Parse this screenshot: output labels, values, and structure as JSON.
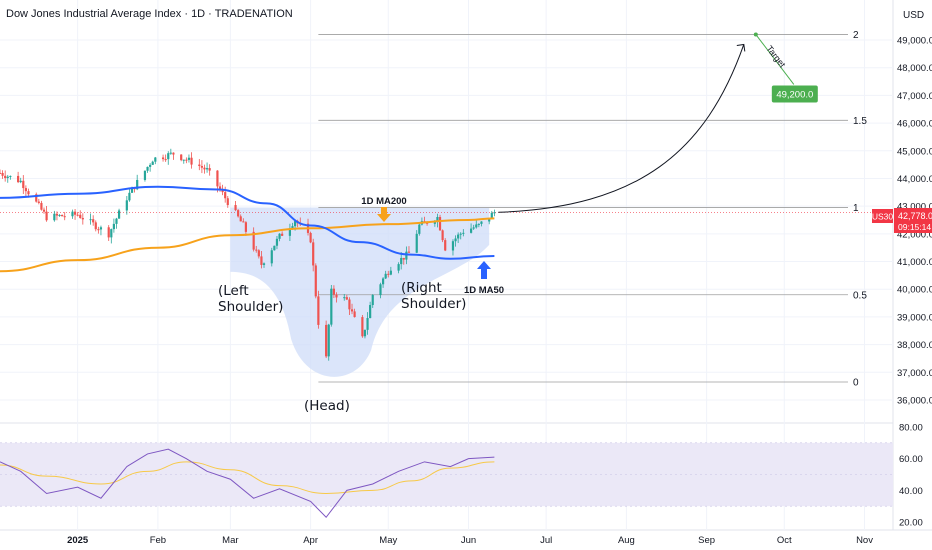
{
  "header": {
    "title": "Dow Jones Industrial Average Index · 1D · TRADENATION"
  },
  "currency": "USD",
  "price_badge": {
    "symbol": "US30",
    "price": "42,778.0",
    "countdown": "09:15:14",
    "color": "#f23645"
  },
  "target_badge": {
    "value": "49,200.0",
    "color": "#4caf50"
  },
  "annotations": {
    "left_shoulder": [
      "(Left",
      "Shoulder)"
    ],
    "head": "(Head)",
    "right_shoulder": [
      "(Right",
      "Shoulder)"
    ],
    "ma200": "1D MA200",
    "ma50": "1D MA50",
    "target": "Target"
  },
  "colors": {
    "up": "#26a69a",
    "down": "#ef5350",
    "ma50": "#2962ff",
    "ma200": "#f7a21b",
    "rsi": "#7e57c2",
    "rsi_ma": "#f7c948",
    "pattern_fill": "#cfdcf8",
    "rsi_band": "#ebe8f7"
  },
  "chart_data": {
    "type": "candlestick",
    "title": "Dow Jones Industrial Average Index · 1D · TRADENATION",
    "price_axis": {
      "ylim": [
        35600,
        50000
      ],
      "ticks": [
        "49,000.0",
        "48,000.0",
        "47,000.0",
        "46,000.0",
        "45,000.0",
        "44,000.0",
        "43,000.0",
        "42,000.0",
        "41,000.0",
        "40,000.0",
        "39,000.0",
        "38,000.0",
        "37,000.0",
        "36,000.0"
      ],
      "tick_values": [
        49000,
        48000,
        47000,
        46000,
        45000,
        44000,
        43000,
        42000,
        41000,
        40000,
        39000,
        38000,
        37000,
        36000
      ]
    },
    "time_axis": {
      "labels": [
        "2025",
        "Feb",
        "Mar",
        "Apr",
        "May",
        "Jun",
        "Jul",
        "Aug",
        "Sep",
        "Oct",
        "Nov"
      ],
      "dates": [
        "2025-01-01",
        "2025-02-01",
        "2025-03-01",
        "2025-04-01",
        "2025-05-01",
        "2025-06-01",
        "2025-07-01",
        "2025-08-01",
        "2025-09-01",
        "2025-10-01",
        "2025-11-01"
      ],
      "range": [
        "2024-12-02",
        "2025-11-12"
      ]
    },
    "fib_levels": [
      {
        "label": "2",
        "value": 49200
      },
      {
        "label": "1.5",
        "value": 46100
      },
      {
        "label": "1",
        "value": 42950
      },
      {
        "label": "0.5",
        "value": 39800
      },
      {
        "label": "0",
        "value": 36650
      }
    ],
    "last_price": 42778,
    "target": {
      "value": 49200,
      "date": "2025-09-20"
    },
    "key_points": [
      {
        "name": "Left Shoulder",
        "date": "2025-03-13",
        "value": 40700
      },
      {
        "name": "Head",
        "date": "2025-04-07",
        "value": 36600
      },
      {
        "name": "Right Shoulder",
        "date": "2025-05-23",
        "value": 41100
      },
      {
        "name": "Current",
        "date": "2025-06-11",
        "value": 42778
      }
    ],
    "ma200": [
      [
        "2024-12-02",
        40650
      ],
      [
        "2025-01-01",
        41050
      ],
      [
        "2025-02-01",
        41500
      ],
      [
        "2025-03-01",
        41950
      ],
      [
        "2025-04-01",
        42200
      ],
      [
        "2025-05-01",
        42350
      ],
      [
        "2025-06-01",
        42500
      ],
      [
        "2025-06-11",
        42560
      ]
    ],
    "ma50": [
      [
        "2024-12-02",
        43300
      ],
      [
        "2025-01-01",
        43450
      ],
      [
        "2025-02-01",
        43700
      ],
      [
        "2025-02-24",
        43600
      ],
      [
        "2025-03-15",
        43100
      ],
      [
        "2025-04-01",
        42300
      ],
      [
        "2025-04-20",
        41700
      ],
      [
        "2025-05-10",
        41250
      ],
      [
        "2025-05-25",
        41100
      ],
      [
        "2025-06-11",
        41200
      ]
    ],
    "rsi": {
      "ylim": [
        20,
        82
      ],
      "ticks": [
        "80.00",
        "60.00",
        "40.00",
        "20.00"
      ],
      "tick_values": [
        80,
        60,
        40,
        20
      ],
      "band": [
        30,
        70
      ],
      "series_points": [
        [
          "2024-12-02",
          58
        ],
        [
          "2024-12-10",
          52
        ],
        [
          "2024-12-20",
          38
        ],
        [
          "2025-01-01",
          42
        ],
        [
          "2025-01-10",
          35
        ],
        [
          "2025-01-20",
          55
        ],
        [
          "2025-01-28",
          63
        ],
        [
          "2025-02-05",
          66
        ],
        [
          "2025-02-12",
          60
        ],
        [
          "2025-02-20",
          52
        ],
        [
          "2025-03-01",
          47
        ],
        [
          "2025-03-10",
          35
        ],
        [
          "2025-03-20",
          41
        ],
        [
          "2025-04-01",
          33
        ],
        [
          "2025-04-07",
          23
        ],
        [
          "2025-04-15",
          40
        ],
        [
          "2025-04-25",
          44
        ],
        [
          "2025-05-05",
          52
        ],
        [
          "2025-05-15",
          58
        ],
        [
          "2025-05-25",
          55
        ],
        [
          "2025-06-01",
          60
        ],
        [
          "2025-06-11",
          61
        ]
      ],
      "ma_points": [
        [
          "2024-12-02",
          56
        ],
        [
          "2024-12-20",
          49
        ],
        [
          "2025-01-10",
          44
        ],
        [
          "2025-01-28",
          52
        ],
        [
          "2025-02-12",
          58
        ],
        [
          "2025-03-01",
          53
        ],
        [
          "2025-03-20",
          43
        ],
        [
          "2025-04-07",
          38
        ],
        [
          "2025-04-25",
          40
        ],
        [
          "2025-05-10",
          46
        ],
        [
          "2025-05-25",
          54
        ],
        [
          "2025-06-11",
          58
        ]
      ]
    }
  }
}
